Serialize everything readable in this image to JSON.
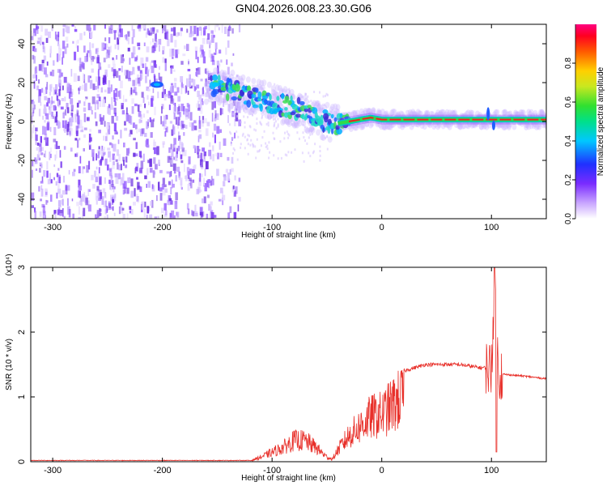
{
  "title": "GN04.2026.008.23.30.G06",
  "chart_data": [
    {
      "type": "heatmap",
      "xlabel": "Height of straight line (km)",
      "ylabel": "Frequency (Hz)",
      "xlim": [
        -320,
        150
      ],
      "ylim": [
        -50,
        50
      ],
      "xticks": [
        -300,
        -200,
        -100,
        0,
        100
      ],
      "yticks": [
        -40,
        -20,
        0,
        20,
        40
      ],
      "colorbar": {
        "label": "Normalized spectral amplitude",
        "range": [
          0,
          1
        ],
        "ticks": [
          "0.0",
          "0.2",
          "0.4",
          "0.6",
          "0.8"
        ]
      },
      "ridge": {
        "x": [
          -210,
          -150,
          -120,
          -100,
          -80,
          -65,
          -50,
          -40,
          -30,
          -20,
          -10,
          0,
          20,
          50,
          100,
          150
        ],
        "y": [
          19,
          19,
          13,
          10,
          7,
          3,
          0,
          -1,
          0,
          1,
          2,
          1,
          1,
          1,
          1,
          1
        ]
      },
      "grid": false
    },
    {
      "type": "line",
      "xlabel": "Height of straight line (km)",
      "ylabel": "SNR (10 * v/v)",
      "yscale_label": "(x10⁴)",
      "xlim": [
        -320,
        150
      ],
      "ylim": [
        0,
        3
      ],
      "xticks": [
        -300,
        -200,
        -100,
        0,
        100
      ],
      "yticks": [
        0,
        1,
        2,
        3
      ],
      "series": [
        {
          "color": "#e8302a",
          "envelope_x": [
            -320,
            -120,
            -110,
            -100,
            -90,
            -80,
            -70,
            -60,
            -50,
            -45,
            -40,
            -30,
            -20,
            -10,
            0,
            10,
            20,
            30,
            40,
            50,
            70,
            90,
            100,
            103,
            106,
            110,
            130,
            150
          ],
          "envelope_y": [
            0.02,
            0.02,
            0.1,
            0.2,
            0.3,
            0.45,
            0.45,
            0.3,
            0.1,
            0.05,
            0.25,
            0.55,
            0.75,
            0.95,
            1.0,
            1.2,
            1.4,
            1.45,
            1.5,
            1.5,
            1.5,
            1.45,
            1.45,
            2.95,
            1.4,
            1.35,
            1.32,
            1.28
          ]
        }
      ],
      "grid": false
    }
  ]
}
